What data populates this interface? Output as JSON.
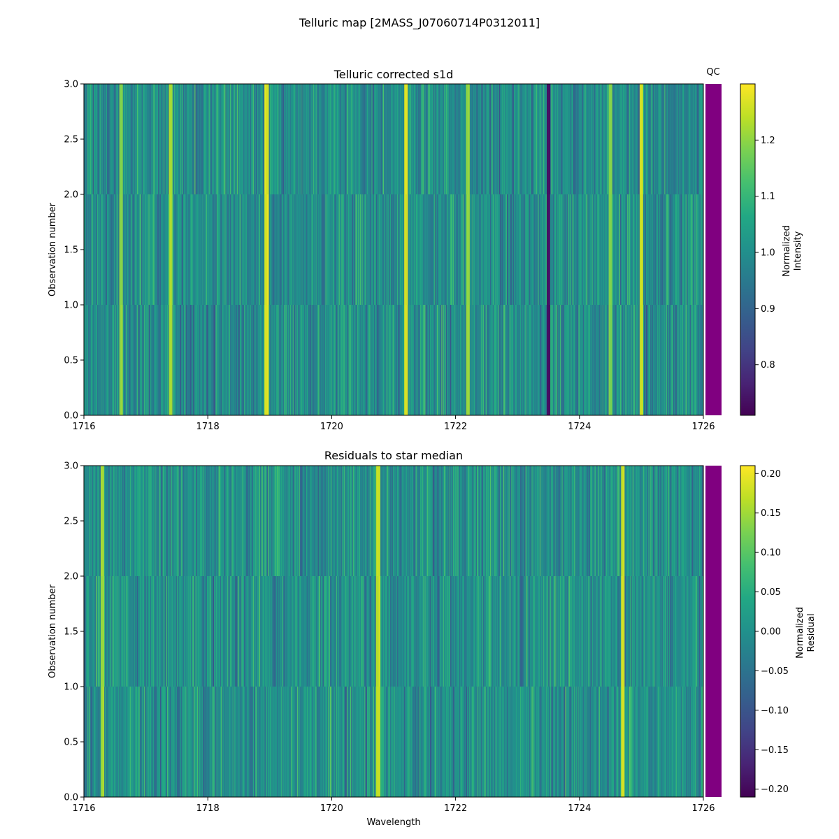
{
  "figure": {
    "suptitle": "Telluric map [2MASS_J07060714P0312011]",
    "qc_label": "QC",
    "qc_color": "#800080"
  },
  "chart_data": [
    {
      "type": "heatmap",
      "title": "Telluric corrected s1d",
      "xlabel": "",
      "ylabel": "Observation number",
      "xlim": [
        1716,
        1726
      ],
      "ylim": [
        0,
        3
      ],
      "xticks": [
        1716,
        1718,
        1720,
        1722,
        1724,
        1726
      ],
      "yticks": [
        0.0,
        0.5,
        1.0,
        1.5,
        2.0,
        2.5,
        3.0
      ],
      "rows": [
        0,
        1,
        2
      ],
      "colormap": "viridis",
      "color_range": [
        0.71,
        1.3
      ],
      "colorbar_label": [
        "Normalized",
        "Intensity"
      ],
      "colorbar_ticks": [
        0.8,
        0.9,
        1.0,
        1.1,
        1.2
      ],
      "qc_status": [
        "fail",
        "fail",
        "fail"
      ],
      "features": [
        {
          "x": 1716.6,
          "value": 1.2
        },
        {
          "x": 1717.4,
          "value": 1.22
        },
        {
          "x": 1718.95,
          "value": 1.27
        },
        {
          "x": 1721.2,
          "value": 1.27
        },
        {
          "x": 1722.2,
          "value": 1.2
        },
        {
          "x": 1723.5,
          "value": 0.74
        },
        {
          "x": 1724.5,
          "value": 1.19
        },
        {
          "x": 1725.0,
          "value": 1.25
        }
      ]
    },
    {
      "type": "heatmap",
      "title": "Residuals to star median",
      "xlabel": "Wavelength",
      "ylabel": "Observation number",
      "xlim": [
        1716,
        1726
      ],
      "ylim": [
        0,
        3
      ],
      "xticks": [
        1716,
        1718,
        1720,
        1722,
        1724,
        1726
      ],
      "yticks": [
        0.0,
        0.5,
        1.0,
        1.5,
        2.0,
        2.5,
        3.0
      ],
      "rows": [
        0,
        1,
        2
      ],
      "colormap": "viridis",
      "color_range": [
        -0.21,
        0.21
      ],
      "colorbar_label": [
        "Normalized",
        "Residual"
      ],
      "colorbar_ticks": [
        0.2,
        0.15,
        0.1,
        0.05,
        0.0,
        -0.05,
        -0.1,
        -0.15,
        -0.2
      ],
      "colorbar_tick_labels": [
        "0.20",
        "0.15",
        "0.10",
        "0.05",
        "0.00",
        "−0.05",
        "−0.10",
        "−0.15",
        "−0.20"
      ],
      "qc_status": [
        "fail",
        "fail",
        "fail"
      ],
      "features": [
        {
          "x": 1716.3,
          "value": 0.15
        },
        {
          "x": 1720.75,
          "value": 0.17
        },
        {
          "x": 1724.7,
          "value": 0.18
        }
      ]
    }
  ]
}
